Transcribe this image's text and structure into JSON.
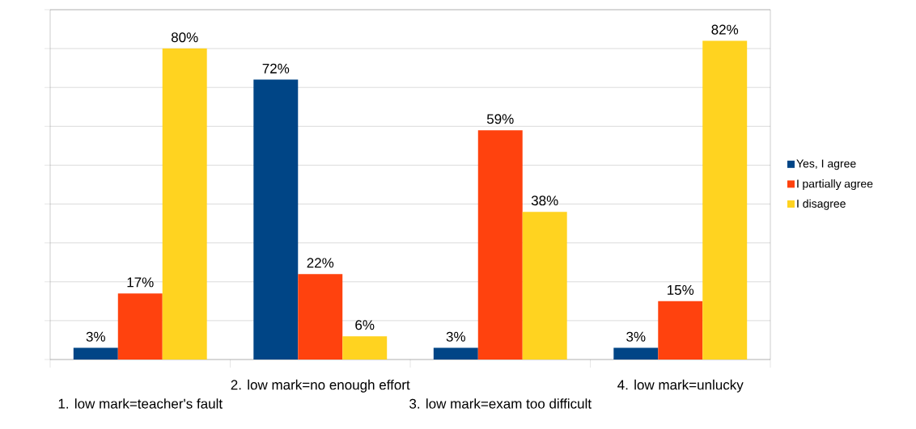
{
  "chart_data": {
    "type": "bar",
    "categories": [
      "1. low mark=teacher's fault",
      "2. low mark=no enough effort",
      "3. low mark=exam too difficult",
      "4. low mark=unlucky"
    ],
    "series": [
      {
        "name": "Yes, I agree",
        "color": "#004586",
        "values": [
          3,
          72,
          3,
          3
        ],
        "value_labels": [
          "3%",
          "72%",
          "3%",
          "3%"
        ]
      },
      {
        "name": "I partially agree",
        "color": "#ff420e",
        "values": [
          17,
          22,
          59,
          15
        ],
        "value_labels": [
          "17%",
          "22%",
          "59%",
          "15%"
        ]
      },
      {
        "name": "I disagree",
        "color": "#ffd320",
        "values": [
          80,
          6,
          38,
          82
        ],
        "value_labels": [
          "80%",
          "6%",
          "38%",
          "82%"
        ]
      }
    ],
    "ylim": [
      0,
      90
    ],
    "yticks": [
      {
        "value": 0,
        "label": null
      },
      {
        "value": 10,
        "label": null
      },
      {
        "value": 20,
        "label": null
      },
      {
        "value": 30,
        "label": null
      },
      {
        "value": 40,
        "label": null
      },
      {
        "value": 50,
        "label": null
      },
      {
        "value": 60,
        "label": null
      },
      {
        "value": 70,
        "label": null
      },
      {
        "value": 80,
        "label": null
      },
      {
        "value": 90,
        "label": null
      }
    ],
    "grid": "y",
    "legend": "right",
    "tick_labels": "x"
  }
}
